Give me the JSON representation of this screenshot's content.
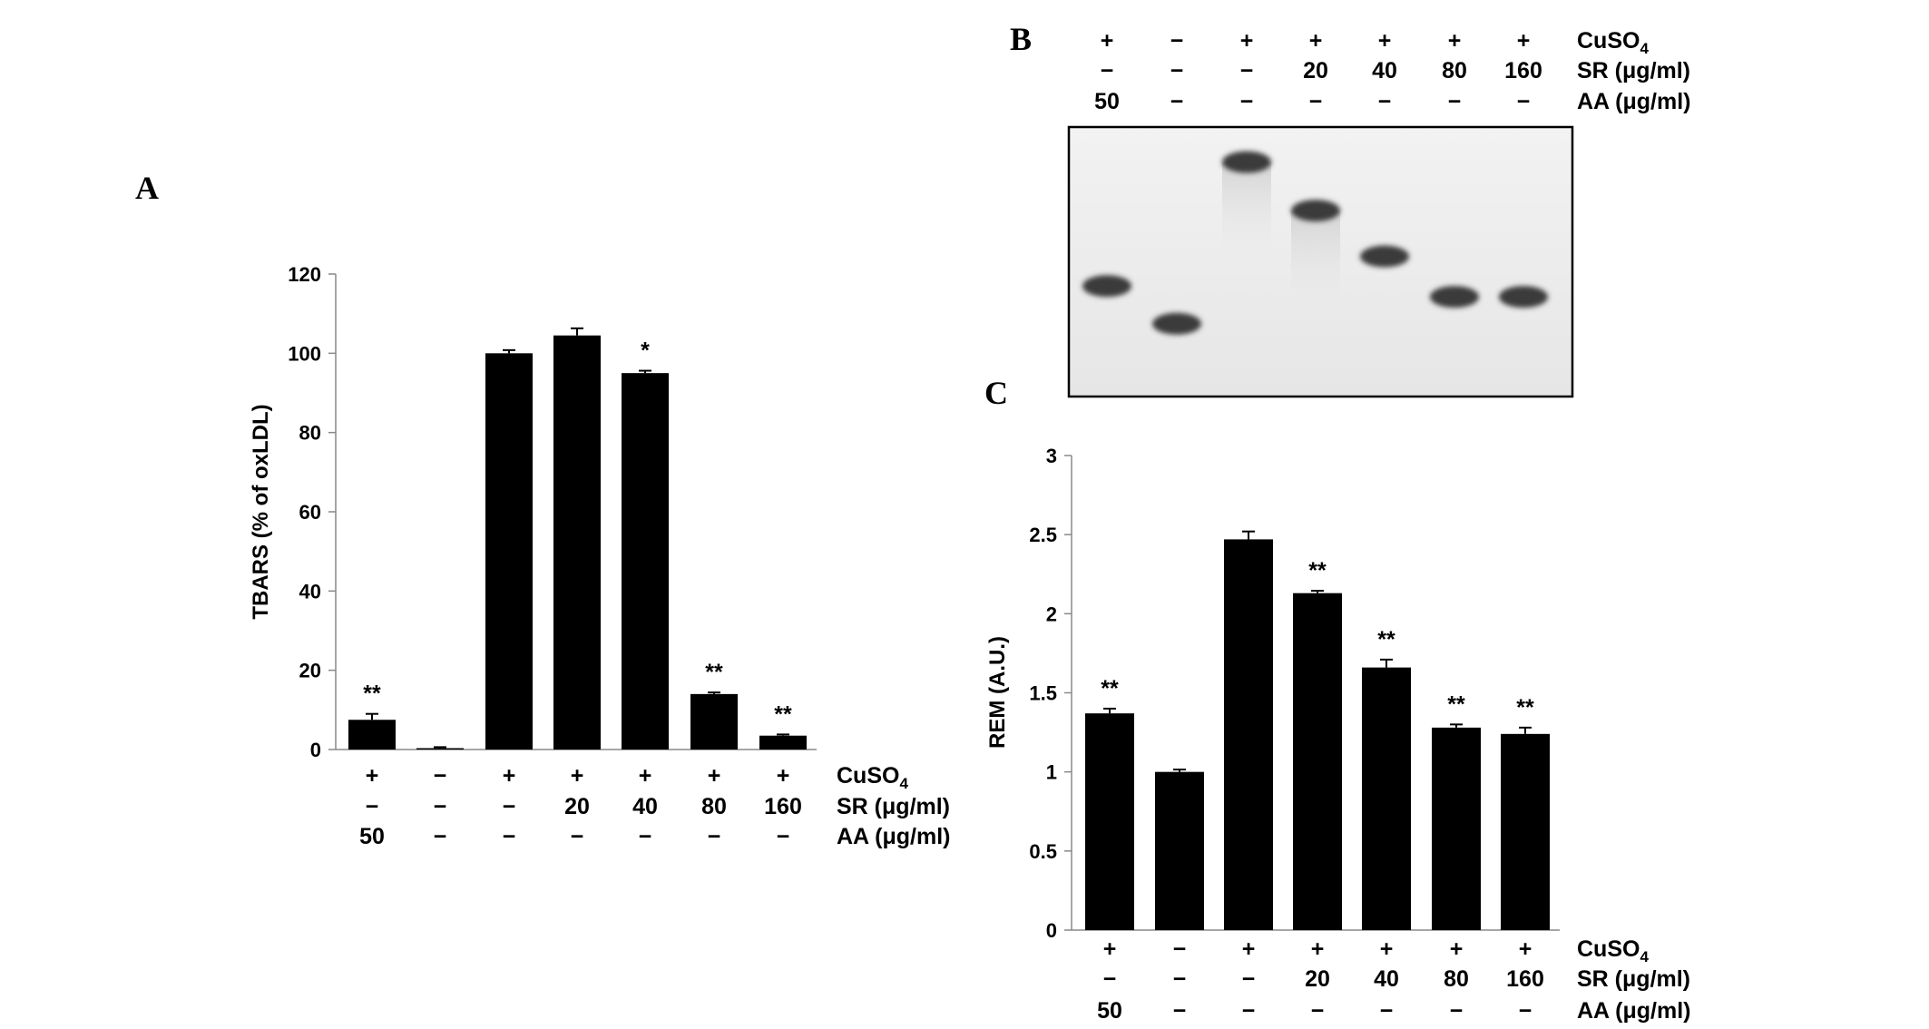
{
  "panels": {
    "a": "A",
    "b": "B",
    "c": "C"
  },
  "treatment_rows": {
    "cuso4": [
      "+",
      "−",
      "+",
      "+",
      "+",
      "+",
      "+"
    ],
    "sr": [
      "−",
      "−",
      "−",
      "20",
      "40",
      "80",
      "160"
    ],
    "aa": [
      "50",
      "−",
      "−",
      "−",
      "−",
      "−",
      "−"
    ],
    "labels": {
      "cuso4": "CuSO4",
      "sr": "SR (μg/ml)",
      "aa": "AA (μg/ml)"
    }
  },
  "chart_data": [
    {
      "panel": "A",
      "type": "bar",
      "ylabel": "TBARS (% of oxLDL)",
      "ylim": [
        0,
        120
      ],
      "yticks": [
        0,
        20,
        40,
        60,
        80,
        100,
        120
      ],
      "ytick_labels": [
        "0",
        "20",
        "40",
        "60",
        "80",
        "100",
        "120"
      ],
      "values": [
        7.5,
        0.3,
        100,
        104.5,
        95,
        14,
        3.5
      ],
      "errors": [
        1.5,
        0.3,
        0.8,
        1.8,
        0.6,
        0.4,
        0.3
      ],
      "significance": [
        "**",
        "",
        "",
        "",
        "*",
        "**",
        "**"
      ],
      "bar_color": "#000000"
    },
    {
      "panel": "C",
      "type": "bar",
      "ylabel": "REM (A.U.)",
      "ylim": [
        0,
        3
      ],
      "yticks": [
        0,
        0.5,
        1,
        1.5,
        2,
        2.5,
        3
      ],
      "ytick_labels": [
        "0",
        "0.5",
        "1",
        "1.5",
        "2",
        "2.5",
        "3"
      ],
      "values": [
        1.37,
        1.0,
        2.47,
        2.13,
        1.66,
        1.28,
        1.24
      ],
      "errors": [
        0.03,
        0.015,
        0.05,
        0.015,
        0.05,
        0.02,
        0.04
      ],
      "significance": [
        "**",
        "",
        "",
        "**",
        "**",
        "**",
        "**"
      ],
      "bar_color": "#000000"
    }
  ],
  "gel": {
    "lanes": 7,
    "band_relative_mobility": [
      0.59,
      0.73,
      0.13,
      0.31,
      0.48,
      0.63,
      0.63
    ],
    "band_color": "#3a3a3a",
    "background": "#eeeeee"
  }
}
